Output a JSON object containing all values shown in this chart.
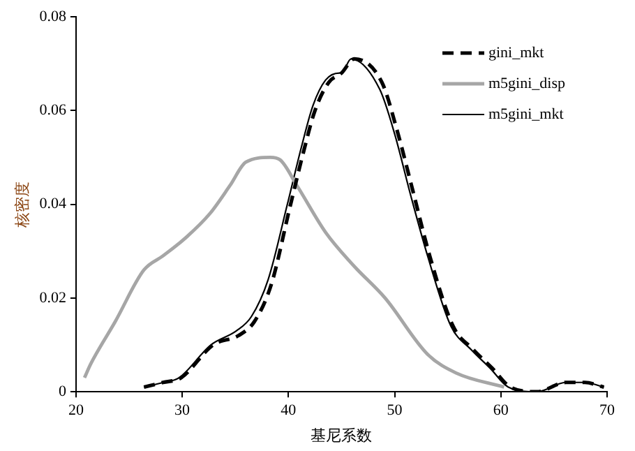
{
  "chart_data": {
    "type": "line",
    "xlabel": "基尼系数",
    "ylabel": "核密度",
    "xlim": [
      20,
      70
    ],
    "xticks": [
      20,
      30,
      40,
      50,
      60,
      70
    ],
    "ylim": [
      0,
      0.08
    ],
    "yticks": [
      0,
      0.02,
      0.04,
      0.06,
      0.08
    ],
    "grid": false,
    "legend": "top right",
    "marker": "none",
    "series": [
      {
        "name": "gini_mkt",
        "color": "#000000",
        "line_style": "dashed",
        "x": [
          26.4,
          28.2,
          29.9,
          32.9,
          35.3,
          36.8,
          38.4,
          40.1,
          41.4,
          42.5,
          43.8,
          45.0,
          46.2,
          48.8,
          50.2,
          51.7,
          53.3,
          55.5,
          57.4,
          59.2,
          60.9,
          63.4,
          66.1,
          67.9,
          69.7
        ],
        "values": [
          0.001,
          0.002,
          0.003,
          0.01,
          0.012,
          0.015,
          0.023,
          0.039,
          0.051,
          0.06,
          0.066,
          0.068,
          0.071,
          0.066,
          0.056,
          0.043,
          0.029,
          0.014,
          0.009,
          0.005,
          0.001,
          0.0,
          0.002,
          0.002,
          0.001
        ]
      },
      {
        "name": "m5gini_disp",
        "color": "#a6a6a6",
        "line_style": "solid",
        "x": [
          20.8,
          21.4,
          23.7,
          26.4,
          28.2,
          30.4,
          32.6,
          34.5,
          36.0,
          38.3,
          39.2,
          40.8,
          43.5,
          46.1,
          49.1,
          53.1,
          55.8,
          60.3
        ],
        "values": [
          0.003,
          0.006,
          0.015,
          0.026,
          0.029,
          0.033,
          0.038,
          0.044,
          0.049,
          0.05,
          0.0495,
          0.044,
          0.034,
          0.027,
          0.02,
          0.008,
          0.004,
          0.001
        ]
      },
      {
        "name": "m5gini_mkt",
        "color": "#000000",
        "line_style": "solid",
        "x": [
          26.4,
          28.2,
          29.7,
          32.7,
          35.1,
          36.5,
          38.1,
          39.9,
          41.2,
          42.3,
          43.5,
          44.8,
          45.0,
          45.9,
          48.6,
          50.0,
          51.5,
          53.1,
          55.3,
          57.2,
          59.0,
          60.7,
          63.4,
          66.1,
          67.9,
          69.7
        ],
        "values": [
          0.001,
          0.002,
          0.003,
          0.01,
          0.013,
          0.016,
          0.024,
          0.04,
          0.052,
          0.061,
          0.0665,
          0.068,
          0.068,
          0.071,
          0.0645,
          0.055,
          0.042,
          0.029,
          0.014,
          0.009,
          0.005,
          0.001,
          0.0,
          0.002,
          0.002,
          0.001
        ]
      }
    ]
  }
}
